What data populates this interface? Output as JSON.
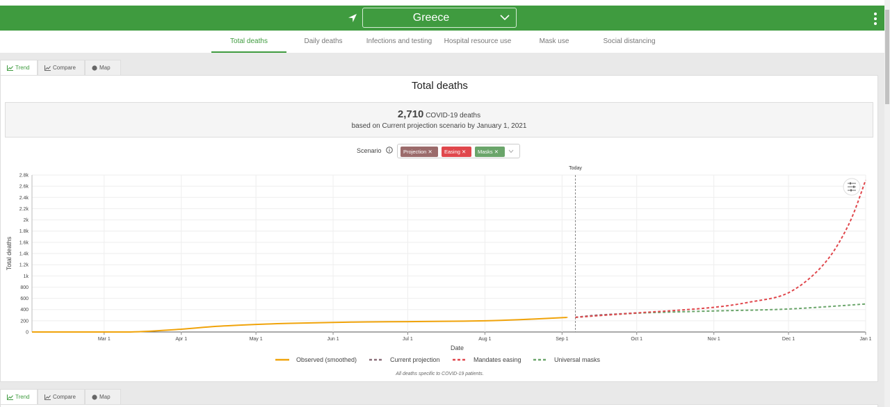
{
  "header": {
    "country": "Greece",
    "locate_icon": "location-arrow-icon",
    "menu_icon": "kebab-menu-icon",
    "accent": "#3f9b3f"
  },
  "nav": {
    "tabs": [
      "Total deaths",
      "Daily deaths",
      "Infections and testing",
      "Hospital resource use",
      "Mask use",
      "Social distancing"
    ],
    "active": "Total deaths"
  },
  "subtabs": {
    "trend": "Trend",
    "compare": "Compare",
    "map": "Map"
  },
  "panel": {
    "title": "Total deaths",
    "summary_value": "2,710",
    "summary_unit": "COVID-19 deaths",
    "summary_sub": "based on Current projection scenario by January 1, 2021",
    "scenario_label": "Scenario",
    "chips": [
      {
        "label": "Projection",
        "color": "#9b6b6b"
      },
      {
        "label": "Easing",
        "color": "#e0474c"
      },
      {
        "label": "Masks",
        "color": "#6aa56a"
      }
    ],
    "footnote": "All deaths specific to COVID-19 patients."
  },
  "chart_data": {
    "type": "line",
    "title": "",
    "xlabel": "Date",
    "ylabel": "Total deaths",
    "x_ticks": [
      "Mar 1",
      "Apr 1",
      "May 1",
      "Jun 1",
      "Jul 1",
      "Aug 1",
      "Sep 1",
      "Oct 1",
      "Nov 1",
      "Dec 1",
      "Jan 1"
    ],
    "y_ticks": [
      "0",
      "200",
      "400",
      "600",
      "800",
      "1k",
      "1.2k",
      "1.4k",
      "1.6k",
      "1.8k",
      "2k",
      "2.2k",
      "2.4k",
      "2.6k",
      "2.8k"
    ],
    "ylim": [
      0,
      2800
    ],
    "grid": true,
    "today_label": "Today",
    "today": "Sep 3",
    "series": [
      {
        "name": "Observed (smoothed)",
        "color": "#f0a30a",
        "dashed": false,
        "x": [
          "Feb 1",
          "Mar 1",
          "Mar 15",
          "Apr 1",
          "Apr 15",
          "May 1",
          "May 15",
          "Jun 1",
          "Jun 15",
          "Jul 1",
          "Jul 15",
          "Aug 1",
          "Aug 15",
          "Sep 1",
          "Sep 3"
        ],
        "y": [
          0,
          0,
          5,
          50,
          100,
          135,
          155,
          170,
          180,
          185,
          190,
          200,
          220,
          255,
          262
        ]
      },
      {
        "name": "Current projection",
        "color": "#8a6d78",
        "dashed": true,
        "x": [
          "Sep 3",
          "Sep 15",
          "Oct 1"
        ],
        "y": [
          262,
          300,
          340
        ]
      },
      {
        "name": "Mandates easing",
        "color": "#e0474c",
        "dashed": true,
        "x": [
          "Sep 3",
          "Oct 1",
          "Oct 15",
          "Nov 1",
          "Nov 15",
          "Dec 1",
          "Dec 15",
          "Dec 25",
          "Jan 1"
        ],
        "y": [
          262,
          340,
          380,
          440,
          530,
          700,
          1200,
          1900,
          2710
        ]
      },
      {
        "name": "Universal masks",
        "color": "#6aa56a",
        "dashed": true,
        "x": [
          "Sep 3",
          "Oct 1",
          "Nov 1",
          "Dec 1",
          "Jan 1"
        ],
        "y": [
          262,
          335,
          375,
          410,
          500
        ]
      }
    ]
  }
}
